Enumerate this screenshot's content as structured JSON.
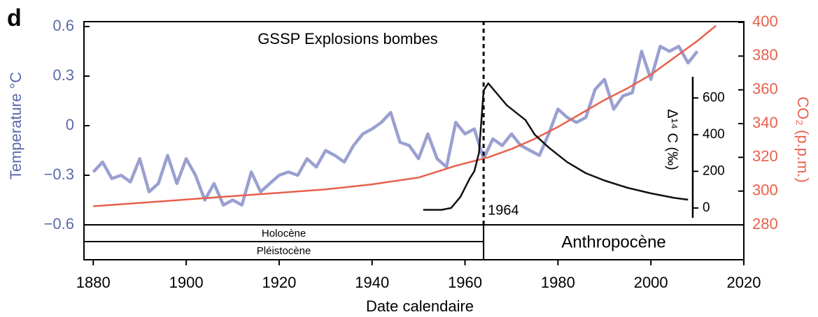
{
  "chart_data": {
    "type": "line",
    "panel_label": "d",
    "title": "GSSP Explosions bombes",
    "x_label": "Date calendaire",
    "y_label": "Temperature °C",
    "y2_label": "CO₂ (p.p.m.)",
    "y3_label": "Δ¹⁴ C (‰)",
    "xlim": [
      1878,
      2020
    ],
    "xticks": [
      1880,
      1900,
      1920,
      1940,
      1960,
      1980,
      2000,
      2020
    ],
    "ylim": [
      -0.6,
      0.6
    ],
    "yticks": [
      {
        "value": 0.6,
        "label": "0.6"
      },
      {
        "value": 0.3,
        "label": "0.3"
      },
      0,
      {
        "value": -0.3,
        "label": "−0.3"
      },
      {
        "value": -0.6,
        "label": "−0.6"
      }
    ],
    "y2lim": [
      280,
      400
    ],
    "y2ticks": [
      280,
      300,
      320,
      340,
      360,
      380,
      400
    ],
    "y3lim": [
      -50,
      700
    ],
    "y3ticks": [
      0,
      200,
      400,
      600
    ],
    "grid": false,
    "marker": {
      "value": 1964,
      "label": "1964"
    },
    "periods": [
      "Holocène",
      "Pléistocène",
      "Anthropocène"
    ],
    "series": [
      {
        "name": "Temperature",
        "color": "#9aa0d0",
        "axis": "y",
        "x": [
          1880,
          1882,
          1884,
          1886,
          1888,
          1890,
          1892,
          1894,
          1896,
          1898,
          1900,
          1902,
          1904,
          1906,
          1908,
          1910,
          1912,
          1914,
          1916,
          1918,
          1920,
          1922,
          1924,
          1926,
          1928,
          1930,
          1932,
          1934,
          1936,
          1938,
          1940,
          1942,
          1944,
          1946,
          1948,
          1950,
          1952,
          1954,
          1956,
          1958,
          1960,
          1962,
          1964,
          1966,
          1968,
          1970,
          1972,
          1974,
          1976,
          1978,
          1980,
          1982,
          1984,
          1986,
          1988,
          1990,
          1992,
          1994,
          1996,
          1998,
          2000,
          2002,
          2004,
          2006,
          2008,
          2010
        ],
        "values": [
          -0.28,
          -0.22,
          -0.32,
          -0.3,
          -0.34,
          -0.2,
          -0.4,
          -0.35,
          -0.18,
          -0.35,
          -0.2,
          -0.3,
          -0.45,
          -0.35,
          -0.48,
          -0.45,
          -0.48,
          -0.28,
          -0.4,
          -0.35,
          -0.3,
          -0.28,
          -0.3,
          -0.2,
          -0.25,
          -0.15,
          -0.18,
          -0.22,
          -0.12,
          -0.05,
          -0.02,
          0.02,
          0.08,
          -0.1,
          -0.12,
          -0.2,
          -0.05,
          -0.2,
          -0.25,
          0.02,
          -0.05,
          -0.02,
          -0.2,
          -0.08,
          -0.12,
          -0.05,
          -0.12,
          -0.15,
          -0.18,
          -0.05,
          0.1,
          0.05,
          0.02,
          0.05,
          0.22,
          0.28,
          0.1,
          0.18,
          0.2,
          0.45,
          0.28,
          0.48,
          0.45,
          0.48,
          0.38,
          0.45
        ]
      },
      {
        "name": "CO2",
        "color": "#e8604c",
        "axis": "y2",
        "x": [
          1880,
          1890,
          1900,
          1910,
          1920,
          1930,
          1940,
          1950,
          1958,
          1965,
          1970,
          1975,
          1980,
          1985,
          1990,
          1995,
          2000,
          2005,
          2010,
          2014
        ],
        "values": [
          291,
          293,
          295,
          297,
          299,
          301,
          304,
          308,
          315,
          320,
          325,
          331,
          338,
          346,
          354,
          361,
          369,
          379,
          389,
          398
        ]
      },
      {
        "name": "Δ14C",
        "color": "#111111",
        "axis": "y3",
        "x": [
          1951,
          1955,
          1957,
          1959,
          1961,
          1962,
          1963,
          1964,
          1965,
          1967,
          1969,
          1971,
          1973,
          1975,
          1978,
          1982,
          1986,
          1990,
          1995,
          2000,
          2005,
          2008
        ],
        "values": [
          -10,
          -10,
          0,
          60,
          160,
          200,
          300,
          640,
          680,
          620,
          560,
          520,
          480,
          400,
          330,
          250,
          190,
          150,
          110,
          80,
          55,
          45
        ]
      }
    ]
  }
}
